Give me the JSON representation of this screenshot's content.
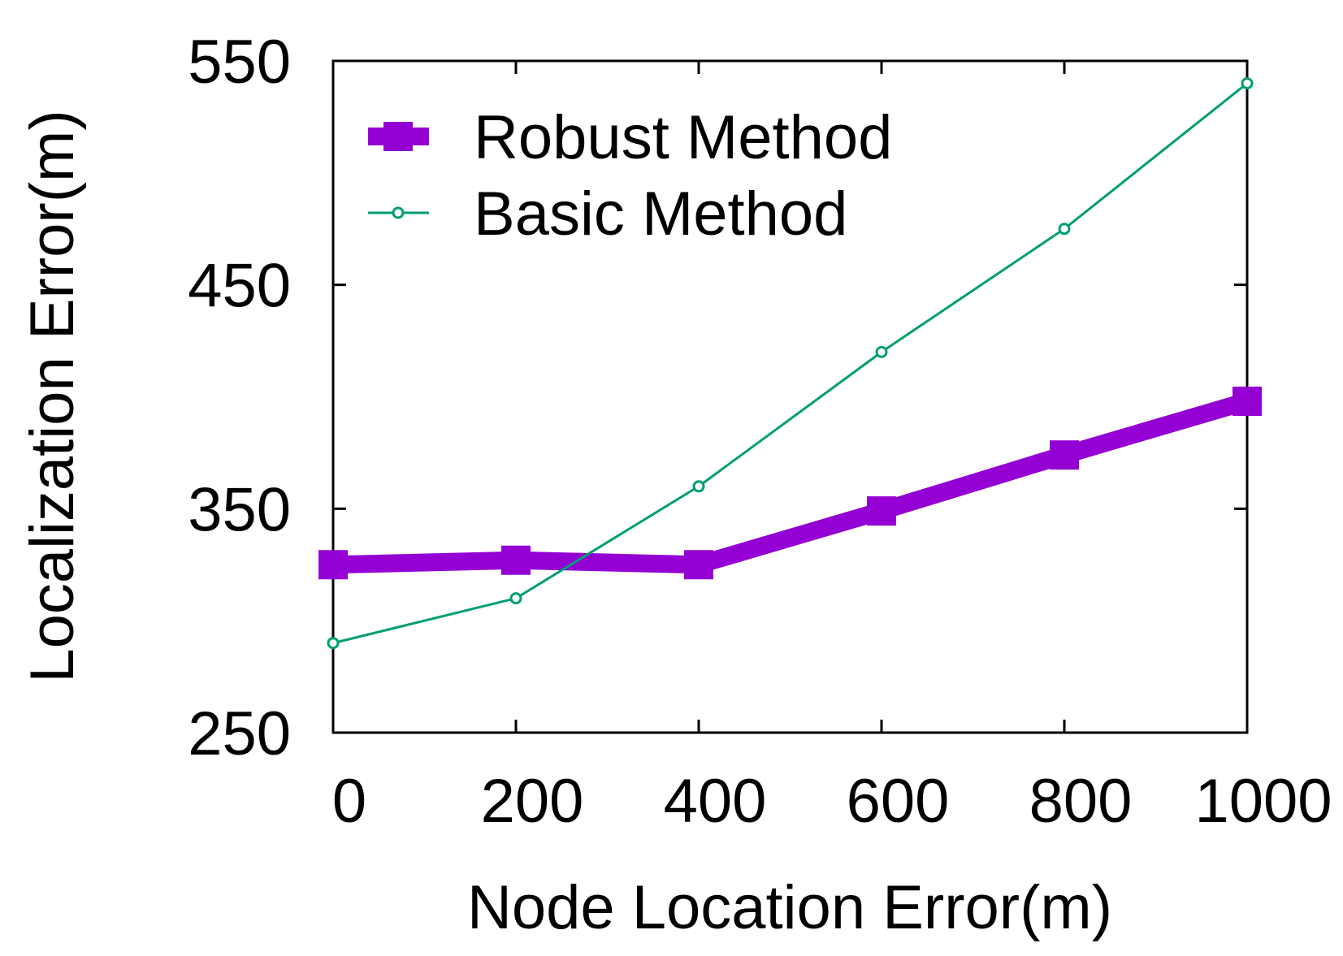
{
  "chart_data": {
    "type": "line",
    "xlabel": "Node Location Error(m)",
    "ylabel": "Localization Error(m)",
    "xlim": [
      0,
      1000
    ],
    "ylim": [
      250,
      550
    ],
    "x_ticks": [
      0,
      200,
      400,
      600,
      800,
      1000
    ],
    "y_ticks": [
      250,
      350,
      450,
      550
    ],
    "grid": false,
    "legend_position": "top-left",
    "x": [
      0,
      200,
      400,
      600,
      800,
      1000
    ],
    "series": [
      {
        "name": "Robust Method",
        "values": [
          325,
          327,
          325,
          349,
          374,
          398
        ],
        "color": "#9400D3",
        "marker": "square",
        "line": "thick"
      },
      {
        "name": "Basic Method",
        "values": [
          290,
          310,
          360,
          420,
          475,
          540
        ],
        "color": "#009E73",
        "marker": "open-circle",
        "line": "thin"
      }
    ]
  }
}
